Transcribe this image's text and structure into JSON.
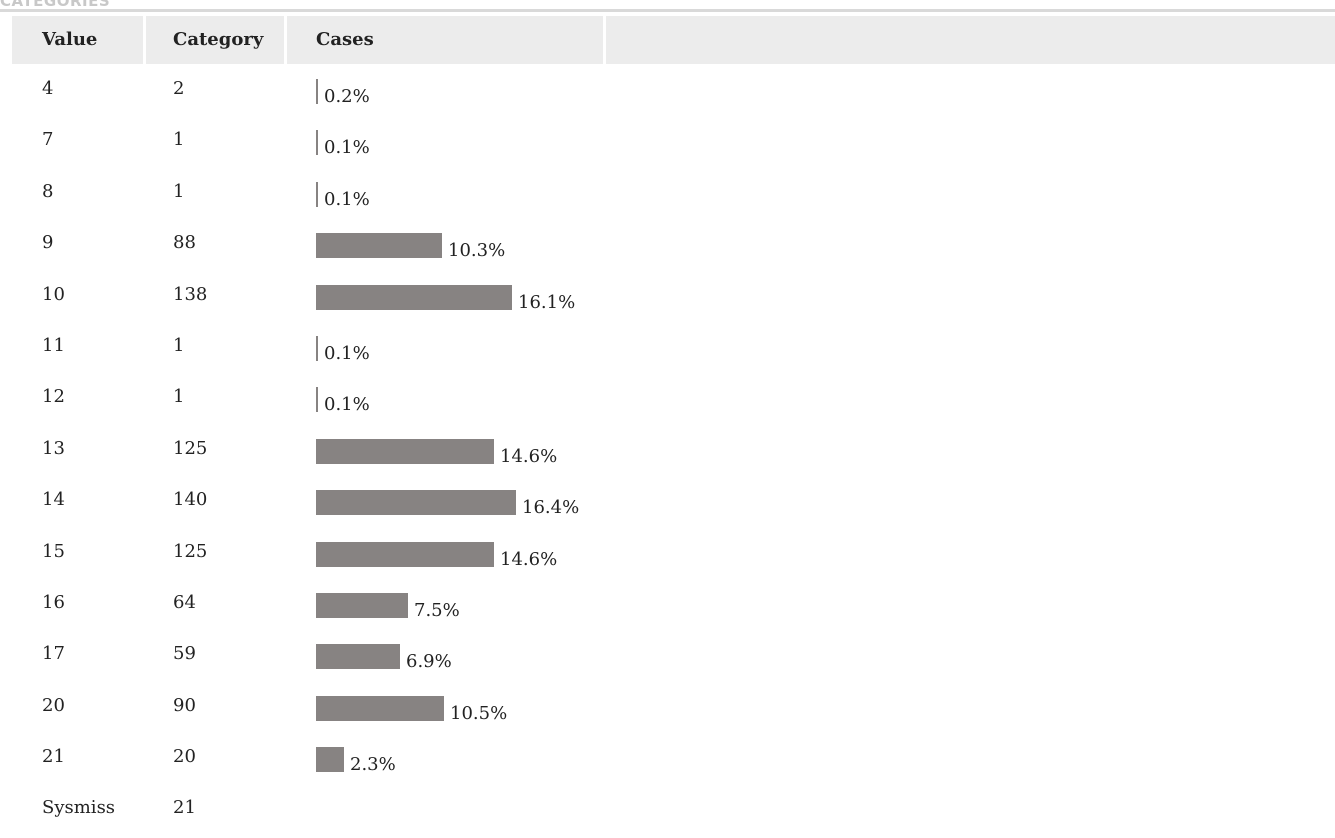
{
  "section_title": "CATEGORIES",
  "headers": {
    "value": "Value",
    "category": "Category",
    "cases": "Cases"
  },
  "colors": {
    "bar": "#878382",
    "header_bg": "#ececec",
    "title": "#c8c8c8"
  },
  "rows": [
    {
      "value": "4",
      "category": "2",
      "pct": "0.2%",
      "fraction": 0.002
    },
    {
      "value": "7",
      "category": "1",
      "pct": "0.1%",
      "fraction": 0.001
    },
    {
      "value": "8",
      "category": "1",
      "pct": "0.1%",
      "fraction": 0.001
    },
    {
      "value": "9",
      "category": "88",
      "pct": "10.3%",
      "fraction": 0.103
    },
    {
      "value": "10",
      "category": "138",
      "pct": "16.1%",
      "fraction": 0.161
    },
    {
      "value": "11",
      "category": "1",
      "pct": "0.1%",
      "fraction": 0.001
    },
    {
      "value": "12",
      "category": "1",
      "pct": "0.1%",
      "fraction": 0.001
    },
    {
      "value": "13",
      "category": "125",
      "pct": "14.6%",
      "fraction": 0.146
    },
    {
      "value": "14",
      "category": "140",
      "pct": "16.4%",
      "fraction": 0.164
    },
    {
      "value": "15",
      "category": "125",
      "pct": "14.6%",
      "fraction": 0.146
    },
    {
      "value": "16",
      "category": "64",
      "pct": "7.5%",
      "fraction": 0.075
    },
    {
      "value": "17",
      "category": "59",
      "pct": "6.9%",
      "fraction": 0.069
    },
    {
      "value": "20",
      "category": "90",
      "pct": "10.5%",
      "fraction": 0.105
    },
    {
      "value": "21",
      "category": "20",
      "pct": "2.3%",
      "fraction": 0.023
    },
    {
      "value": "Sysmiss",
      "category": "21",
      "pct": "",
      "fraction": null
    }
  ]
}
